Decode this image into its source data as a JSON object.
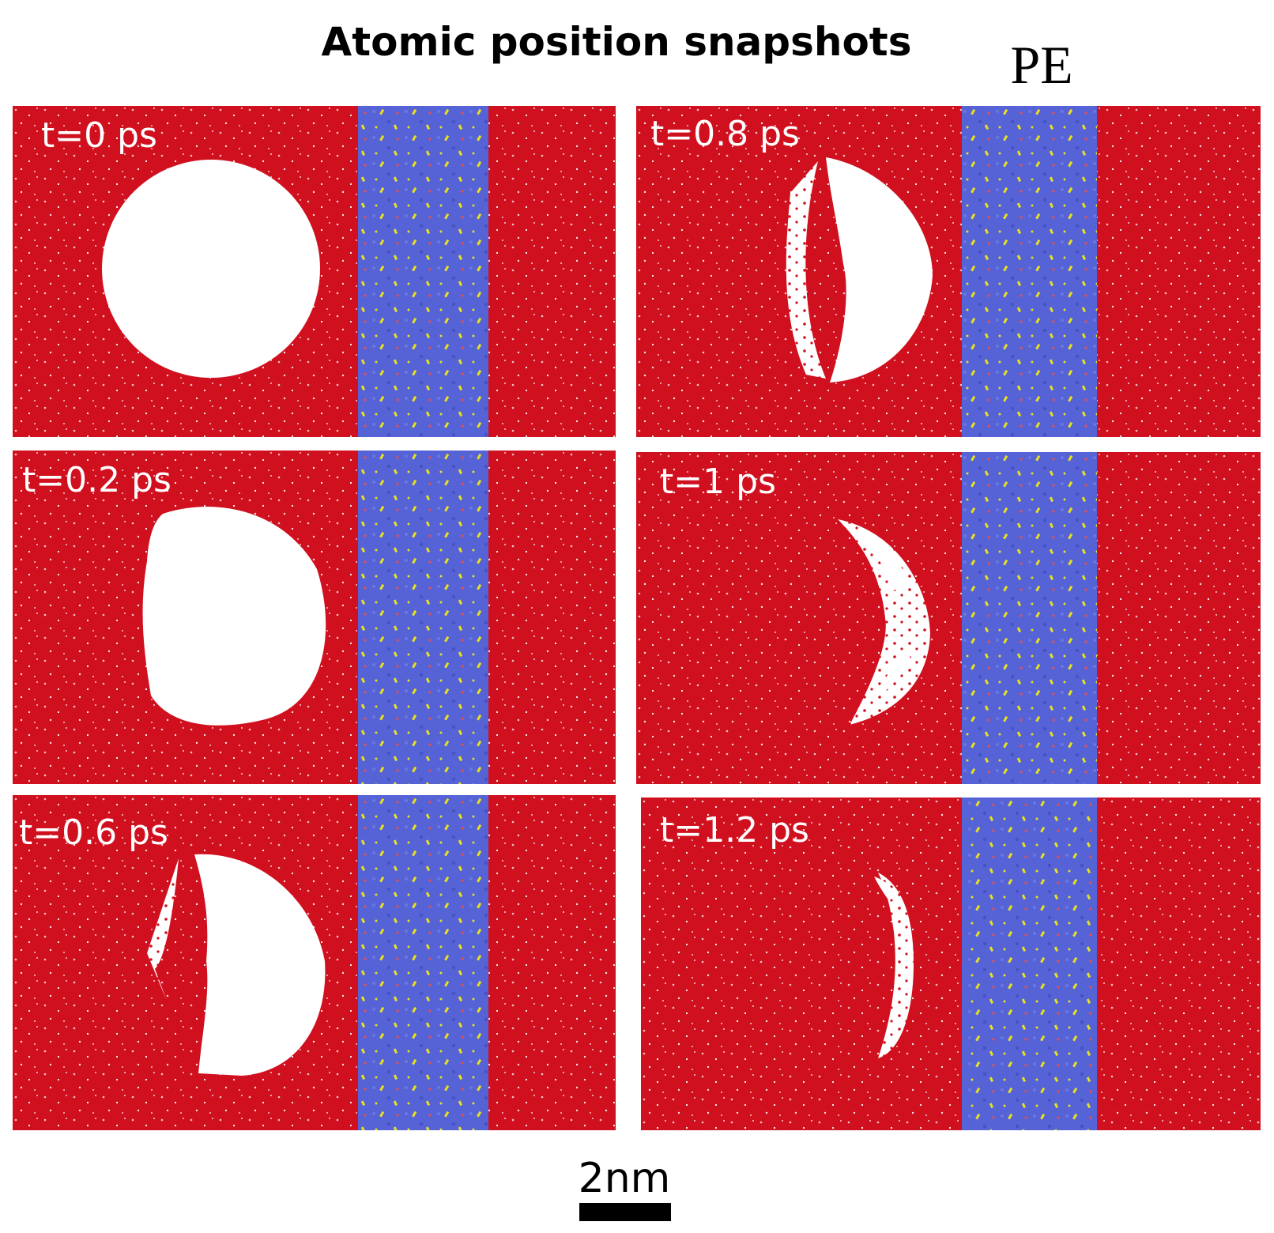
{
  "title": "Atomic position snapshots",
  "pe_label": "PE",
  "panels": [
    {
      "label": "t=0 ps"
    },
    {
      "label": "t=0.2 ps"
    },
    {
      "label": "t=0.6 ps"
    },
    {
      "label": "t=0.8 ps"
    },
    {
      "label": "t=1 ps"
    },
    {
      "label": "t=1.2 ps"
    }
  ],
  "scale_bar": {
    "label": "2nm"
  }
}
